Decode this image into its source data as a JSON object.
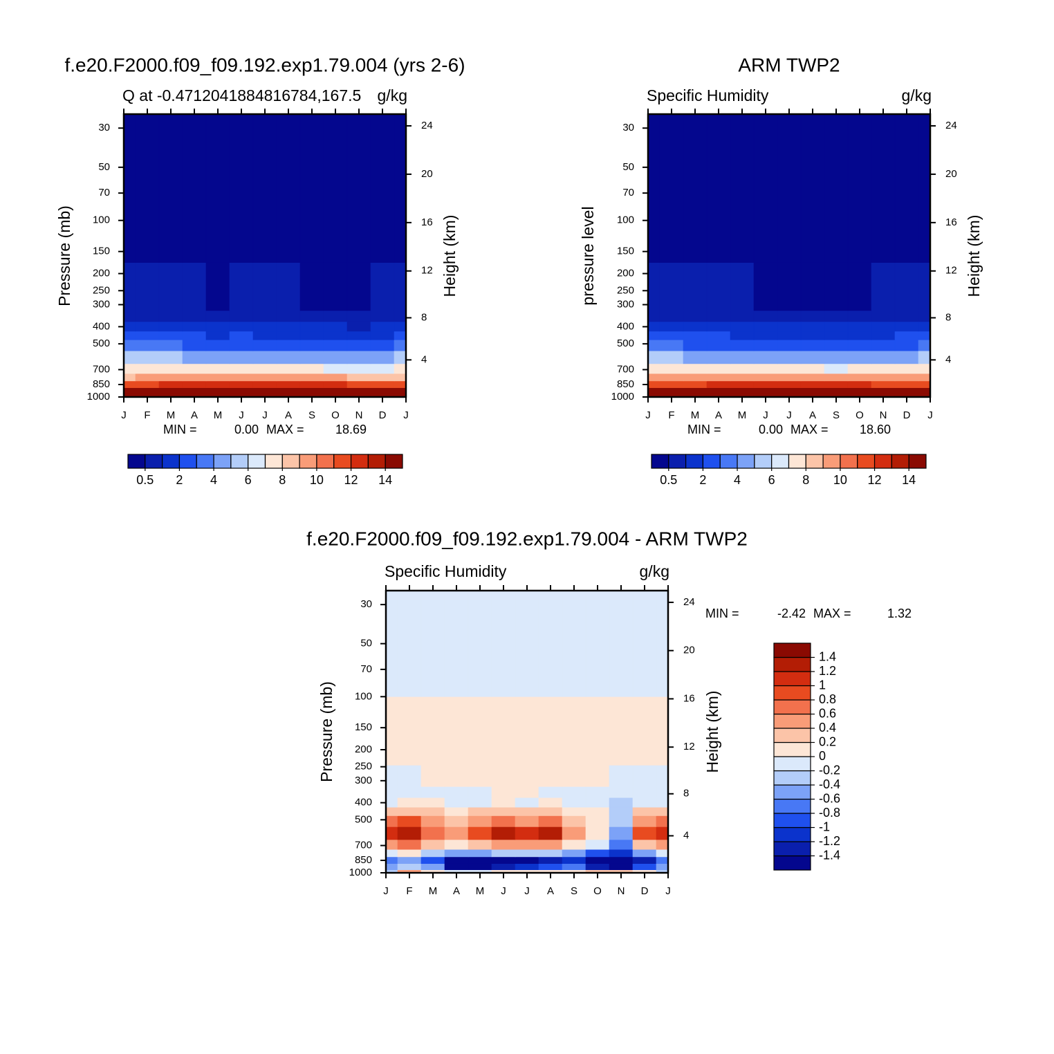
{
  "chart_data": [
    {
      "type": "contour",
      "title": "f.e20.F2000.f09_f09.192.exp1.79.004 (yrs 2-6)",
      "left_string": "Q at -0.4712041884816784,167.5",
      "right_string": "g/kg",
      "ylabel": "Pressure (mb)",
      "y2label": "Height (km)",
      "x": [
        "J",
        "F",
        "M",
        "A",
        "M",
        "J",
        "J",
        "A",
        "S",
        "O",
        "N",
        "D",
        "J"
      ],
      "y": [
        1000,
        925,
        850,
        775,
        700,
        600,
        500,
        450,
        400,
        350,
        300,
        100
      ],
      "z": [
        [
          17.5,
          17.8,
          17.6,
          18.0,
          18.3,
          18.4,
          18.5,
          18.6,
          18.5,
          18.4,
          18.0,
          17.8,
          17.5
        ],
        [
          14.2,
          14.6,
          14.8,
          15.0,
          15.2,
          15.1,
          15.3,
          15.4,
          15.2,
          15.0,
          14.6,
          14.5,
          14.2
        ],
        [
          11.5,
          11.8,
          12.0,
          12.2,
          12.3,
          12.1,
          12.4,
          12.5,
          12.3,
          12.0,
          11.2,
          11.5,
          11.5
        ],
        [
          8.8,
          9.0,
          9.4,
          9.6,
          9.7,
          9.5,
          9.7,
          9.8,
          9.6,
          9.2,
          8.3,
          8.6,
          8.8
        ],
        [
          7.6,
          7.6,
          7.5,
          7.3,
          7.2,
          7.1,
          7.1,
          7.2,
          7.0,
          6.8,
          6.2,
          6.8,
          7.6
        ],
        [
          5.2,
          5.3,
          5.1,
          4.9,
          4.8,
          4.8,
          4.7,
          4.8,
          4.7,
          4.5,
          4.0,
          4.6,
          5.2
        ],
        [
          3.1,
          3.1,
          3.0,
          2.8,
          2.7,
          2.8,
          2.7,
          2.7,
          2.6,
          2.5,
          2.2,
          2.6,
          3.1
        ],
        [
          2.2,
          2.3,
          2.1,
          2.0,
          1.9,
          2.0,
          1.9,
          1.9,
          1.8,
          1.7,
          1.5,
          1.8,
          2.2
        ],
        [
          1.4,
          1.4,
          1.3,
          1.2,
          1.1,
          1.3,
          1.2,
          1.2,
          1.1,
          1.1,
          0.9,
          1.2,
          1.4
        ],
        [
          0.9,
          0.9,
          0.8,
          0.8,
          0.7,
          0.9,
          0.8,
          0.8,
          0.7,
          0.7,
          0.6,
          0.8,
          0.9
        ],
        [
          0.6,
          0.55,
          0.55,
          0.5,
          0.45,
          0.6,
          0.5,
          0.5,
          0.45,
          0.45,
          0.4,
          0.5,
          0.6
        ],
        [
          0,
          0,
          0,
          0,
          0,
          0,
          0,
          0,
          0,
          0,
          0,
          0,
          0
        ]
      ],
      "ylim": [
        1000,
        25
      ],
      "log_y": true,
      "yticks": [
        30,
        50,
        70,
        100,
        150,
        200,
        250,
        300,
        400,
        500,
        700,
        850,
        1000
      ],
      "y2ticks": [
        4,
        8,
        12,
        16,
        20,
        24
      ],
      "levels": [
        0.5,
        1,
        2,
        3,
        4,
        5,
        6,
        7,
        8,
        9,
        10,
        11,
        12,
        13,
        14
      ],
      "colorbar_ticks": [
        0.5,
        2,
        4,
        6,
        8,
        10,
        12,
        14
      ],
      "colorbar": "bottom",
      "colors": [
        "#04078e",
        "#0a1fad",
        "#0b33cc",
        "#1f50ee",
        "#4878f5",
        "#7ca2f7",
        "#b3cdf9",
        "#dbe9fb",
        "#fde6d6",
        "#fcc4a8",
        "#f99c78",
        "#f2714d",
        "#e84b20",
        "#d32d10",
        "#b31d05",
        "#8a0a02"
      ],
      "min_label": "MIN =",
      "min": {
        "value": 0,
        "label": "0.00"
      },
      "max_label": "MAX =",
      "max": {
        "value": 18.69,
        "label": "18.69"
      }
    },
    {
      "type": "contour",
      "title": "ARM TWP2",
      "left_string": "Specific Humidity",
      "right_string": "g/kg",
      "ylabel": "pressure level",
      "y2label": "Height (km)",
      "x": [
        "J",
        "F",
        "M",
        "A",
        "M",
        "J",
        "J",
        "A",
        "S",
        "O",
        "N",
        "D",
        "J"
      ],
      "y": [
        1000,
        925,
        850,
        775,
        700,
        600,
        500,
        450,
        400,
        350,
        300,
        100
      ],
      "z": [
        [
          17.4,
          17.6,
          17.8,
          18.0,
          18.1,
          18.2,
          18.3,
          18.4,
          18.3,
          18.2,
          18.0,
          17.8,
          17.4
        ],
        [
          14.0,
          14.3,
          14.6,
          14.8,
          14.9,
          15.0,
          15.0,
          15.1,
          15.0,
          14.8,
          14.6,
          14.3,
          14.0
        ],
        [
          11.4,
          11.6,
          11.9,
          12.0,
          12.1,
          12.1,
          12.2,
          12.2,
          12.1,
          12.0,
          11.8,
          11.6,
          11.4
        ],
        [
          9.0,
          9.2,
          9.4,
          9.5,
          9.6,
          9.6,
          9.6,
          9.7,
          9.6,
          9.5,
          9.3,
          9.1,
          9.0
        ],
        [
          7.4,
          7.4,
          7.3,
          7.2,
          7.1,
          7.0,
          7.0,
          7.0,
          6.9,
          7.0,
          7.1,
          7.2,
          7.4
        ],
        [
          5.0,
          5.0,
          4.9,
          4.8,
          4.7,
          4.6,
          4.6,
          4.6,
          4.5,
          4.6,
          4.7,
          4.8,
          5.0
        ],
        [
          3.0,
          3.0,
          2.9,
          2.8,
          2.7,
          2.6,
          2.6,
          2.6,
          2.5,
          2.6,
          2.7,
          2.8,
          3.0
        ],
        [
          2.2,
          2.2,
          2.1,
          2.0,
          1.9,
          1.9,
          1.8,
          1.8,
          1.7,
          1.8,
          1.9,
          2.0,
          2.2
        ],
        [
          1.4,
          1.4,
          1.3,
          1.3,
          1.2,
          1.2,
          1.1,
          1.1,
          1.0,
          1.1,
          1.2,
          1.3,
          1.4
        ],
        [
          0.9,
          0.9,
          0.85,
          0.8,
          0.8,
          0.75,
          0.7,
          0.7,
          0.65,
          0.7,
          0.75,
          0.8,
          0.9
        ],
        [
          0.55,
          0.55,
          0.5,
          0.5,
          0.5,
          0.45,
          0.45,
          0.45,
          0.4,
          0.45,
          0.5,
          0.5,
          0.55
        ],
        [
          0,
          0,
          0,
          0,
          0,
          0,
          0,
          0,
          0,
          0,
          0,
          0,
          0
        ]
      ],
      "ylim": [
        1000,
        25
      ],
      "log_y": true,
      "yticks": [
        30,
        50,
        70,
        100,
        150,
        200,
        250,
        300,
        400,
        500,
        700,
        850,
        1000
      ],
      "y2ticks": [
        4,
        8,
        12,
        16,
        20,
        24
      ],
      "levels": [
        0.5,
        1,
        2,
        3,
        4,
        5,
        6,
        7,
        8,
        9,
        10,
        11,
        12,
        13,
        14
      ],
      "colorbar_ticks": [
        0.5,
        2,
        4,
        6,
        8,
        10,
        12,
        14
      ],
      "colorbar": "bottom",
      "colors": [
        "#04078e",
        "#0a1fad",
        "#0b33cc",
        "#1f50ee",
        "#4878f5",
        "#7ca2f7",
        "#b3cdf9",
        "#dbe9fb",
        "#fde6d6",
        "#fcc4a8",
        "#f99c78",
        "#f2714d",
        "#e84b20",
        "#d32d10",
        "#b31d05",
        "#8a0a02"
      ],
      "min_label": "MIN =",
      "min": {
        "value": 0,
        "label": "0.00"
      },
      "max_label": "MAX =",
      "max": {
        "value": 18.6,
        "label": "18.60"
      }
    },
    {
      "type": "contour",
      "title": "f.e20.F2000.f09_f09.192.exp1.79.004 - ARM TWP2",
      "left_string": "Specific Humidity",
      "right_string": "g/kg",
      "ylabel": "Pressure (mb)",
      "y2label": "Height (km)",
      "x": [
        "J",
        "F",
        "M",
        "A",
        "M",
        "J",
        "J",
        "A",
        "S",
        "O",
        "N",
        "D",
        "J"
      ],
      "y": [
        1000,
        925,
        850,
        775,
        700,
        600,
        500,
        450,
        400,
        350,
        300,
        200,
        50
      ],
      "z": [
        [
          -0.3,
          0.4,
          0.1,
          -0.2,
          -0.1,
          0.1,
          0,
          0,
          0.1,
          0.3,
          0.2,
          0.1,
          -0.3
        ],
        [
          -0.5,
          -0.3,
          -0.6,
          -1.6,
          -1.5,
          -1.4,
          -1.2,
          -1.0,
          -0.8,
          -1.3,
          -1.8,
          -1.0,
          -0.5
        ],
        [
          -0.8,
          -0.6,
          -0.9,
          -2.0,
          -1.9,
          -1.8,
          -1.6,
          -1.4,
          -1.2,
          -1.8,
          -2.4,
          -1.4,
          -0.8
        ],
        [
          -0.2,
          0.1,
          -0.3,
          -0.6,
          -0.5,
          -0.4,
          -0.3,
          -0.4,
          -0.6,
          -0.9,
          -1.2,
          -0.5,
          -0.2
        ],
        [
          0.4,
          0.6,
          0.2,
          0.1,
          0.3,
          0.5,
          0.4,
          0.5,
          0.1,
          -0.1,
          -0.8,
          0.2,
          0.4
        ],
        [
          1.1,
          1.3,
          0.7,
          0.4,
          0.8,
          1.2,
          1.0,
          1.2,
          0.4,
          0.1,
          -0.6,
          0.8,
          1.1
        ],
        [
          0.6,
          0.8,
          0.5,
          0.3,
          0.5,
          0.6,
          0.5,
          0.6,
          0.3,
          0.1,
          -0.4,
          0.5,
          0.6
        ],
        [
          0.2,
          0.3,
          0.2,
          0.1,
          0.2,
          0.3,
          0.2,
          0.2,
          0.1,
          0.05,
          -0.4,
          0.2,
          0.2
        ],
        [
          -0.05,
          0.1,
          0.05,
          -0.1,
          -0.05,
          0.05,
          -0.05,
          0.05,
          -0.05,
          -0.1,
          -0.3,
          -0.1,
          -0.05
        ],
        [
          -0.1,
          -0.05,
          -0.05,
          -0.1,
          -0.1,
          0.05,
          0.05,
          -0.05,
          -0.1,
          -0.15,
          -0.2,
          -0.1,
          -0.1
        ],
        [
          -0.05,
          -0.05,
          0.05,
          0.05,
          0.1,
          0.1,
          0.05,
          0.05,
          0.1,
          0.05,
          -0.1,
          -0.05,
          -0.05
        ],
        [
          0.1,
          0.1,
          0.1,
          0.1,
          0.1,
          0.1,
          0.1,
          0.1,
          0.1,
          0.1,
          0.1,
          0.1,
          0.1
        ],
        [
          -0.1,
          -0.1,
          -0.1,
          -0.1,
          -0.1,
          -0.1,
          -0.1,
          -0.1,
          -0.1,
          -0.1,
          -0.1,
          -0.1,
          -0.1
        ]
      ],
      "ylim": [
        1000,
        25
      ],
      "log_y": true,
      "yticks": [
        30,
        50,
        70,
        100,
        150,
        200,
        250,
        300,
        400,
        500,
        700,
        850,
        1000
      ],
      "y2ticks": [
        4,
        8,
        12,
        16,
        20,
        24
      ],
      "levels": [
        -1.4,
        -1.2,
        -1,
        -0.8,
        -0.6,
        -0.4,
        -0.2,
        0,
        0.2,
        0.4,
        0.6,
        0.8,
        1,
        1.2,
        1.4
      ],
      "colorbar_ticks": [
        -1.4,
        -1.2,
        -1,
        -0.8,
        -0.6,
        -0.4,
        -0.2,
        0,
        0.2,
        0.4,
        0.6,
        0.8,
        1,
        1.2,
        1.4
      ],
      "colorbar": "right",
      "colors": [
        "#04078e",
        "#0a1fad",
        "#0b33cc",
        "#1f50ee",
        "#4878f5",
        "#7ca2f7",
        "#b3cdf9",
        "#dbe9fb",
        "#fde6d6",
        "#fcc4a8",
        "#f99c78",
        "#f2714d",
        "#e84b20",
        "#d32d10",
        "#b31d05",
        "#8a0a02"
      ],
      "min_label": "MIN =",
      "min": {
        "value": -2.42,
        "label": "-2.42"
      },
      "max_label": "MAX =",
      "max": {
        "value": 1.32,
        "label": "1.32"
      }
    }
  ]
}
